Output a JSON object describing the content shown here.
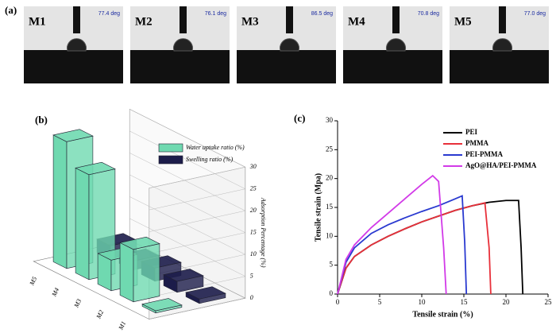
{
  "panel_labels": [
    "(a)",
    "(b)",
    "(c)"
  ],
  "contact_angle": [
    {
      "label": "M1",
      "angle": "77.4 deg"
    },
    {
      "label": "M2",
      "angle": "76.1 deg"
    },
    {
      "label": "M3",
      "angle": "86.5 deg"
    },
    {
      "label": "M4",
      "angle": "70.8 deg"
    },
    {
      "label": "M5",
      "angle": "77.0 deg"
    }
  ],
  "chart_data": [
    {
      "type": "bar3d",
      "ylabel": "Adsorption Percentage (%)",
      "categories": [
        "M1",
        "M2",
        "M3",
        "M4",
        "M5"
      ],
      "series": [
        {
          "name": "Water uptake ratio (%)",
          "color": "#6fd9b0",
          "values": [
            0.5,
            12,
            7,
            24,
            29
          ]
        },
        {
          "name": "Swelling ratio (%)",
          "color": "#1c1c4a",
          "values": [
            1,
            2.5,
            3,
            2,
            3
          ]
        }
      ],
      "ylim": [
        0,
        30
      ],
      "yticks": [
        0,
        5,
        10,
        15,
        20,
        25,
        30
      ]
    },
    {
      "type": "line",
      "xlabel": "Tensile strain (%)",
      "ylabel": "Tensile strain (Mpa)",
      "series": [
        {
          "name": "PEI",
          "color": "#000000",
          "x": [
            0,
            1,
            2,
            4,
            6,
            8,
            10,
            12,
            14,
            16,
            18,
            20,
            21.5,
            21.8,
            22
          ],
          "values": [
            0,
            4.5,
            6.5,
            8.5,
            10,
            11.3,
            12.5,
            13.5,
            14.5,
            15.3,
            15.9,
            16.2,
            16.2,
            8,
            0
          ]
        },
        {
          "name": "PMMA",
          "color": "#e8303a",
          "x": [
            0,
            1,
            2,
            4,
            6,
            8,
            10,
            12,
            14,
            16,
            17.5,
            18,
            18.2
          ],
          "values": [
            0,
            4.5,
            6.5,
            8.5,
            10,
            11.3,
            12.5,
            13.5,
            14.5,
            15.3,
            15.8,
            8,
            0
          ]
        },
        {
          "name": "PEI-PMMA",
          "color": "#2a3ad0",
          "x": [
            0,
            1,
            2,
            4,
            6,
            8,
            10,
            12,
            14,
            14.8,
            15.1,
            15.3
          ],
          "values": [
            0,
            5.5,
            8,
            10.5,
            12,
            13.2,
            14.3,
            15.3,
            16.5,
            17,
            9,
            0
          ]
        },
        {
          "name": "AgO@HA/PEI-PMMA",
          "color": "#d23ae8",
          "x": [
            0,
            1,
            2,
            4,
            6,
            8,
            10,
            11.3,
            12,
            12.6,
            12.9
          ],
          "values": [
            0,
            6,
            8.5,
            11.5,
            14,
            16.5,
            19,
            20.5,
            19.5,
            8,
            0
          ]
        }
      ],
      "xlim": [
        0,
        25
      ],
      "xticks": [
        0,
        5,
        10,
        15,
        20,
        25
      ],
      "ylim": [
        0,
        30
      ],
      "yticks": [
        0,
        5,
        10,
        15,
        20,
        25,
        30
      ],
      "legend": "upper right"
    }
  ]
}
